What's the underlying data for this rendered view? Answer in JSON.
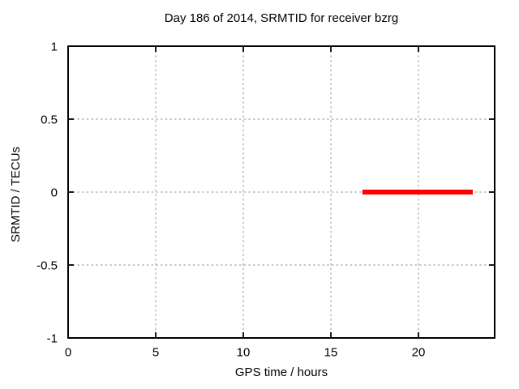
{
  "chart_data": {
    "type": "line",
    "title": "Day 186 of 2014, SRMTID for receiver bzrg",
    "xlabel": "GPS time / hours",
    "ylabel": "SRMTID / TECUs",
    "xlim": [
      0,
      24.35
    ],
    "ylim": [
      -1,
      1
    ],
    "xticks": [
      0,
      5,
      10,
      15,
      20
    ],
    "xtick_labels": [
      "0",
      "5",
      "10",
      "15",
      "20"
    ],
    "yticks": [
      -1,
      -0.5,
      0,
      0.5,
      1
    ],
    "ytick_labels": [
      "-1",
      "-0.5",
      "0",
      "0.5",
      "1"
    ],
    "grid": true,
    "grid_style": "dashed",
    "legend": "none",
    "series": [
      {
        "name": "SRMTID",
        "color": "#ff0000",
        "line_width": 6,
        "points": [
          [
            16.8,
            0
          ],
          [
            23.1,
            0
          ]
        ]
      }
    ],
    "colors": {
      "background": "#ffffff",
      "border": "#000000",
      "grid": "#a8a8a8",
      "text": "#000000"
    }
  }
}
